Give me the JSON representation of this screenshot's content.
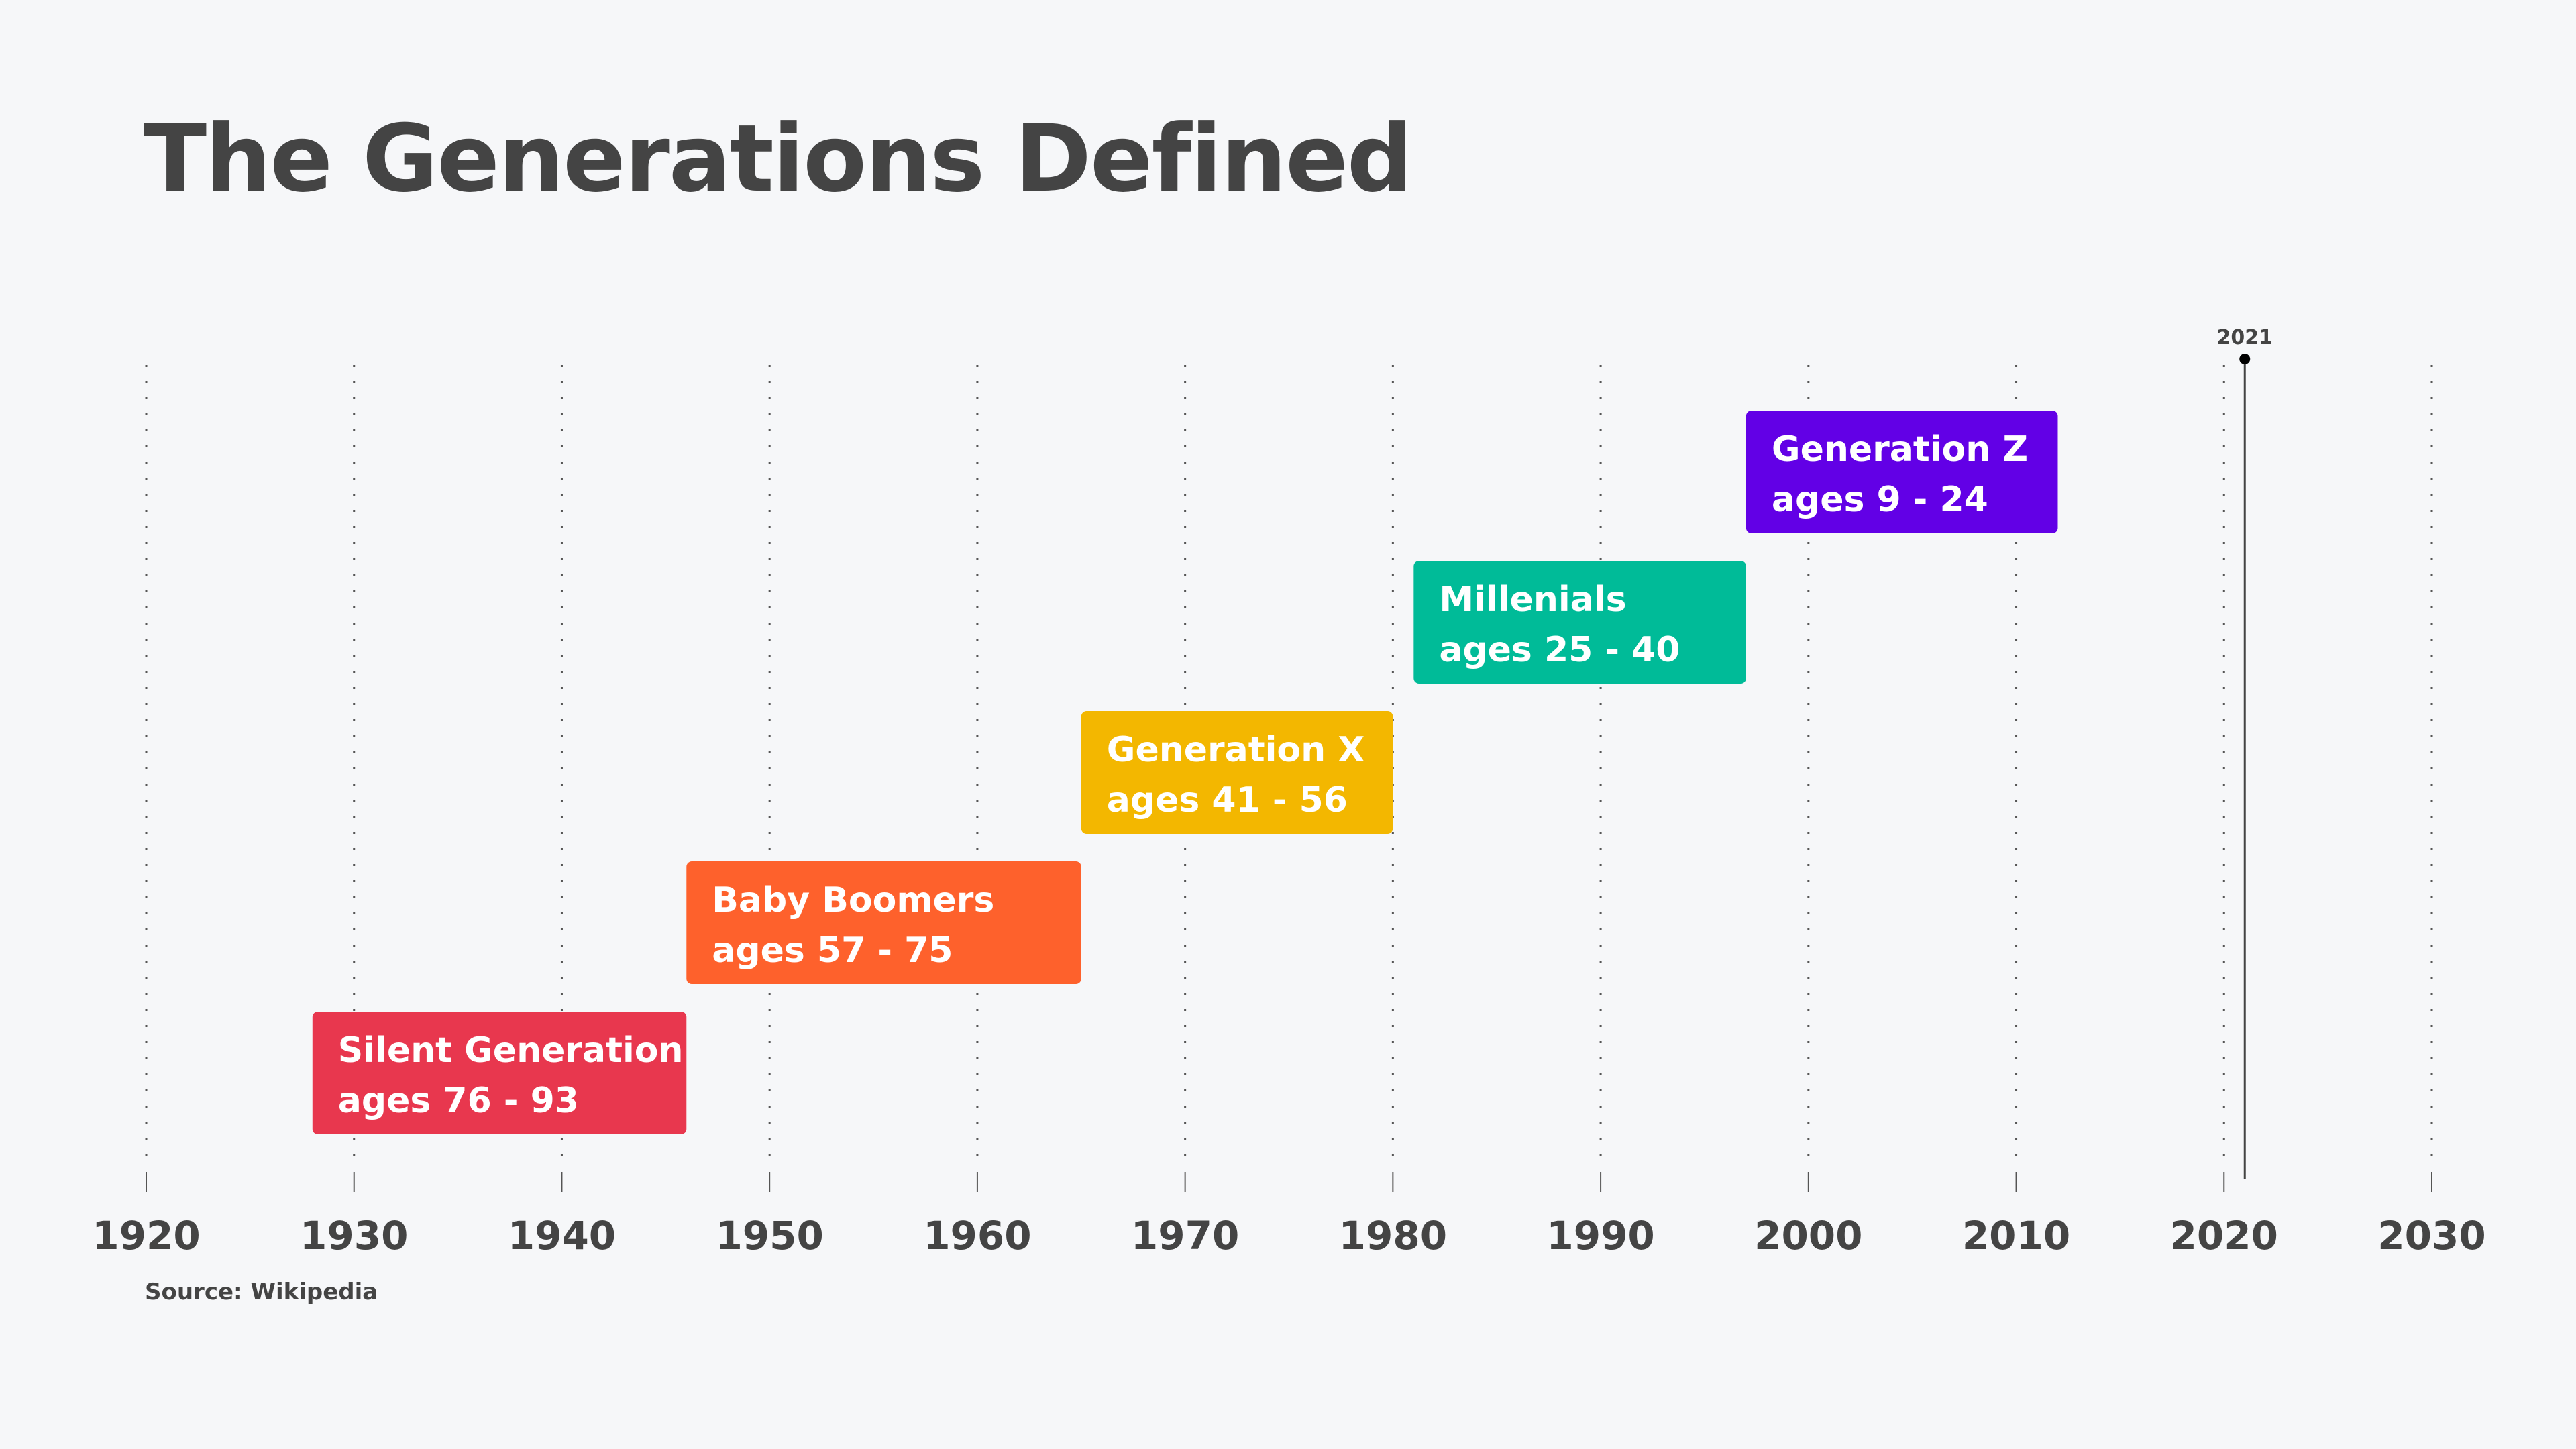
{
  "title": "The Generations Defined",
  "source": "Source: Wikipedia",
  "chart_data": {
    "type": "timeline",
    "title": "The Generations Defined",
    "xlim": [
      1920,
      2030
    ],
    "ticks": [
      1920,
      1930,
      1940,
      1950,
      1960,
      1970,
      1980,
      1990,
      2000,
      2010,
      2020,
      2030
    ],
    "grid": true,
    "marker": {
      "year": 2021,
      "label": "2021"
    },
    "series": [
      {
        "name": "Silent Generation",
        "ages": "ages 76 - 93",
        "start": 1928,
        "end": 1946,
        "color": "#e8374e"
      },
      {
        "name": "Baby Boomers",
        "ages": "ages 57 - 75",
        "start": 1946,
        "end": 1965,
        "color": "#fe612c"
      },
      {
        "name": "Generation X",
        "ages": "ages 41 - 56",
        "start": 1965,
        "end": 1980,
        "color": "#f3b700"
      },
      {
        "name": "Millenials",
        "ages": "ages 25 - 40",
        "start": 1981,
        "end": 1997,
        "color": "#00bb98"
      },
      {
        "name": "Generation Z",
        "ages": "ages 9 - 24",
        "start": 1997,
        "end": 2012,
        "color": "#6200e6"
      }
    ]
  }
}
